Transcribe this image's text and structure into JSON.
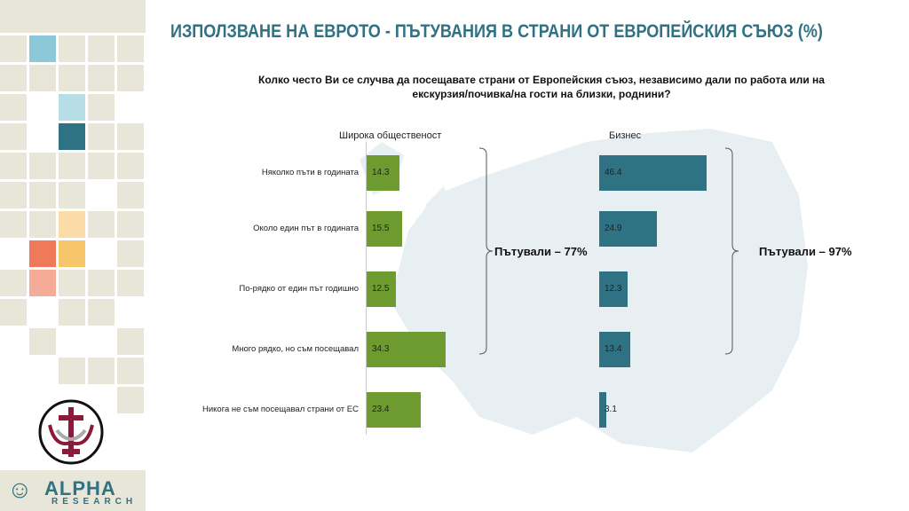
{
  "title": "ИЗПОЛЗВАНЕ НА ЕВРОТО - ПЪТУВАНИЯ В СТРАНИ ОТ ЕВРОПЕЙСКИЯ СЪЮЗ (%)",
  "question": "Колко често Ви се случва да посещавате страни от Европейския съюз, независимо дали по работа или на екскурзия/почивка/на гости на близки, роднини?",
  "logo": {
    "text": "ALPHA RESEARCH"
  },
  "chart_data": [
    {
      "type": "bar",
      "orientation": "horizontal",
      "title": "Широка общественост",
      "categories": [
        "Няколко пъти в годината",
        "Около един път в годината",
        "По-рядко от един път годишно",
        "Много рядко, но съм посещавал",
        "Никога не съм посещавал страни от ЕС"
      ],
      "values": [
        14.3,
        15.5,
        12.5,
        34.3,
        23.4
      ],
      "color": "#6e9b2f",
      "annotation": "Пътували – 77%"
    },
    {
      "type": "bar",
      "orientation": "horizontal",
      "title": "Бизнес",
      "categories": [
        "Няколко пъти в годината",
        "Около един път в годината",
        "По-рядко от един път годишно",
        "Много рядко, но съм посещавал",
        "Никога не съм посещавал страни от ЕС"
      ],
      "values": [
        46.4,
        24.9,
        12.3,
        13.4,
        3.1
      ],
      "color": "#2e7284",
      "annotation": "Пътували – 97%"
    }
  ]
}
